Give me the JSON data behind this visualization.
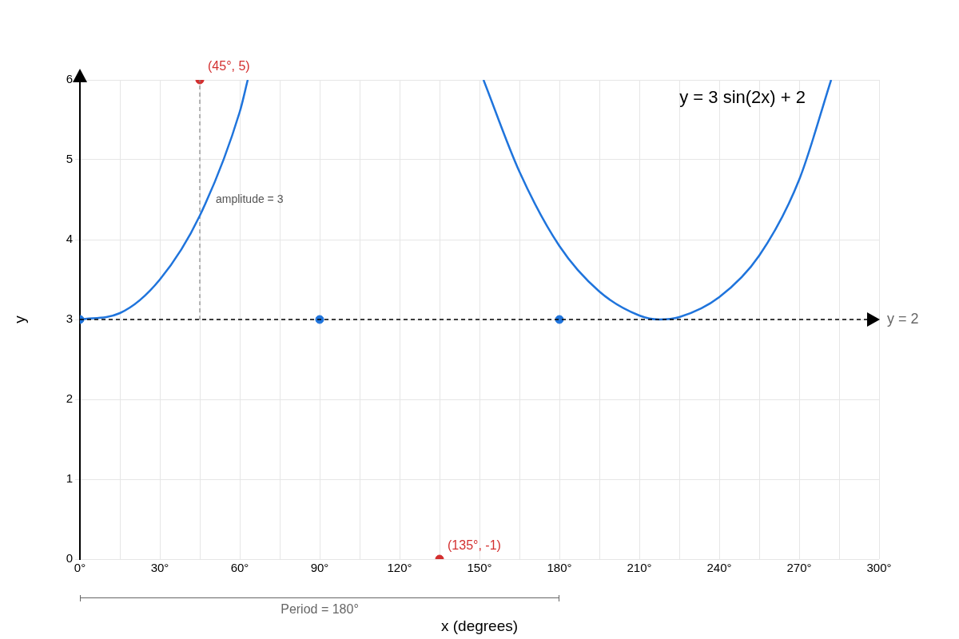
{
  "chart_data": {
    "type": "line",
    "title": "y = 3 sin(2x) + 2",
    "xlabel": "x (degrees)",
    "ylabel": "y",
    "xlim": [
      0,
      300
    ],
    "ylim": [
      0,
      6
    ],
    "xticks": [
      {
        "value": 0,
        "label": "0°"
      },
      {
        "value": 15,
        "label": null
      },
      {
        "value": 30,
        "label": "30°"
      },
      {
        "value": 45,
        "label": null
      },
      {
        "value": 60,
        "label": "60°"
      },
      {
        "value": 75,
        "label": null
      },
      {
        "value": 90,
        "label": "90°"
      },
      {
        "value": 105,
        "label": null
      },
      {
        "value": 120,
        "label": "120°"
      },
      {
        "value": 135,
        "label": null
      },
      {
        "value": 150,
        "label": "150°"
      },
      {
        "value": 165,
        "label": null
      },
      {
        "value": 180,
        "label": "180°"
      },
      {
        "value": 195,
        "label": null
      },
      {
        "value": 210,
        "label": "210°"
      },
      {
        "value": 225,
        "label": null
      },
      {
        "value": 240,
        "label": "240°"
      },
      {
        "value": 255,
        "label": null
      },
      {
        "value": 270,
        "label": "270°"
      },
      {
        "value": 285,
        "label": null
      },
      {
        "value": 300,
        "label": "300°"
      }
    ],
    "yticks": [
      0,
      1,
      2,
      3,
      4,
      5,
      6
    ],
    "grid": true,
    "legend": false,
    "series": [
      {
        "type": "line",
        "color": "#1f74dc",
        "marker": "none",
        "x": [
          0,
          15,
          30,
          45,
          60,
          63,
          105,
          151.5,
          165,
          180,
          195,
          210,
          217.5,
          225,
          240,
          255,
          270,
          282
        ],
        "values": [
          3,
          3.08,
          3.5,
          4.3,
          5.6,
          6,
          null,
          6,
          4.85,
          3.92,
          3.35,
          3.05,
          3,
          3.03,
          3.28,
          3.8,
          4.75,
          6
        ]
      },
      {
        "type": "line",
        "color": "#888888",
        "marker": "none",
        "line_style": "dashed",
        "x": [
          45,
          45
        ],
        "values": [
          3,
          6
        ]
      },
      {
        "type": "scatter",
        "color": "#1f74dc",
        "marker": "circle",
        "x": [
          0,
          90,
          180
        ],
        "values": [
          3,
          3,
          3
        ]
      },
      {
        "type": "scatter",
        "color": "#d32f2f",
        "marker": "circle",
        "x": [
          45,
          135
        ],
        "values": [
          6,
          0
        ],
        "value_labels": [
          "(45°, 5)",
          "(135°, -1)"
        ]
      }
    ],
    "ref_lines": [
      {
        "axis": "y",
        "value": 3,
        "color": "#000000",
        "line_style": "dashed"
      }
    ],
    "annotations": [
      {
        "text": "amplitude = 3",
        "x": 45,
        "y": 4.5
      },
      "y = 2",
      "Period = 180°"
    ]
  }
}
